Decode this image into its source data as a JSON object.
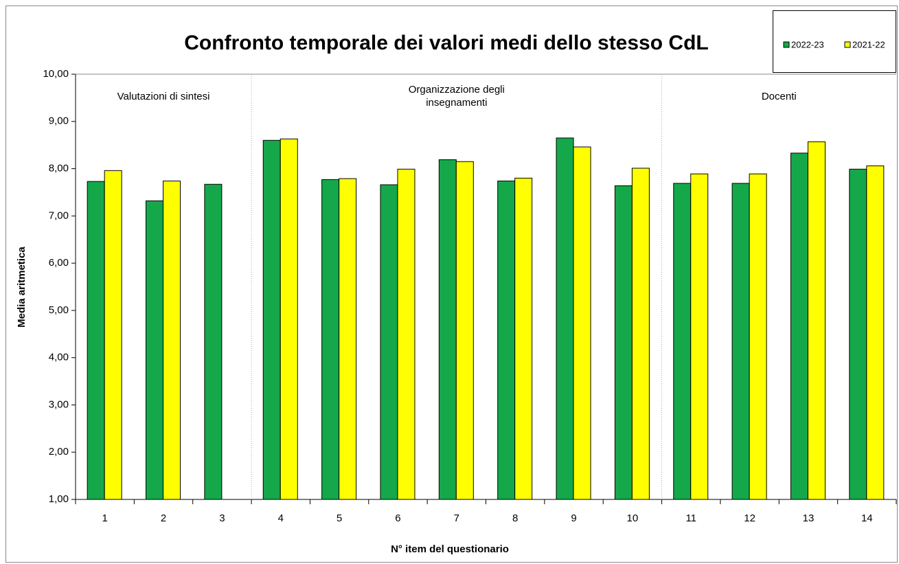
{
  "chart_data": {
    "type": "bar",
    "title": "Confronto temporale dei valori medi dello stesso CdL",
    "x_label": "N° item del questionario",
    "y_label": "Media aritmetica",
    "categories": [
      "1",
      "2",
      "3",
      "4",
      "5",
      "6",
      "7",
      "8",
      "9",
      "10",
      "11",
      "12",
      "13",
      "14"
    ],
    "series": [
      {
        "name": "2022-23",
        "color": "#14a84b",
        "values": [
          7.73,
          7.32,
          7.67,
          8.6,
          7.77,
          7.66,
          8.19,
          7.74,
          8.65,
          7.64,
          7.69,
          7.69,
          8.33,
          7.99
        ]
      },
      {
        "name": "2021-22",
        "color": "#ffff00",
        "values": [
          7.96,
          7.74,
          null,
          8.63,
          7.79,
          7.99,
          8.15,
          7.8,
          8.46,
          8.01,
          7.89,
          7.89,
          8.57,
          8.06
        ]
      }
    ],
    "ylim": [
      1,
      10
    ],
    "yticks": [
      {
        "value": 1,
        "label": "1,00"
      },
      {
        "value": 2,
        "label": "2,00"
      },
      {
        "value": 3,
        "label": "3,00"
      },
      {
        "value": 4,
        "label": "4,00"
      },
      {
        "value": 5,
        "label": "5,00"
      },
      {
        "value": 6,
        "label": "6,00"
      },
      {
        "value": 7,
        "label": "7,00"
      },
      {
        "value": 8,
        "label": "8,00"
      },
      {
        "value": 9,
        "label": "9,00"
      },
      {
        "value": 10,
        "label": "10,00"
      }
    ],
    "groups": [
      {
        "lines": [
          "Valutazioni di sintesi"
        ]
      },
      {
        "lines": [
          "Organizzazione degli",
          "insegnamenti"
        ]
      },
      {
        "lines": [
          "Docenti"
        ]
      }
    ],
    "legend": "top-right"
  }
}
